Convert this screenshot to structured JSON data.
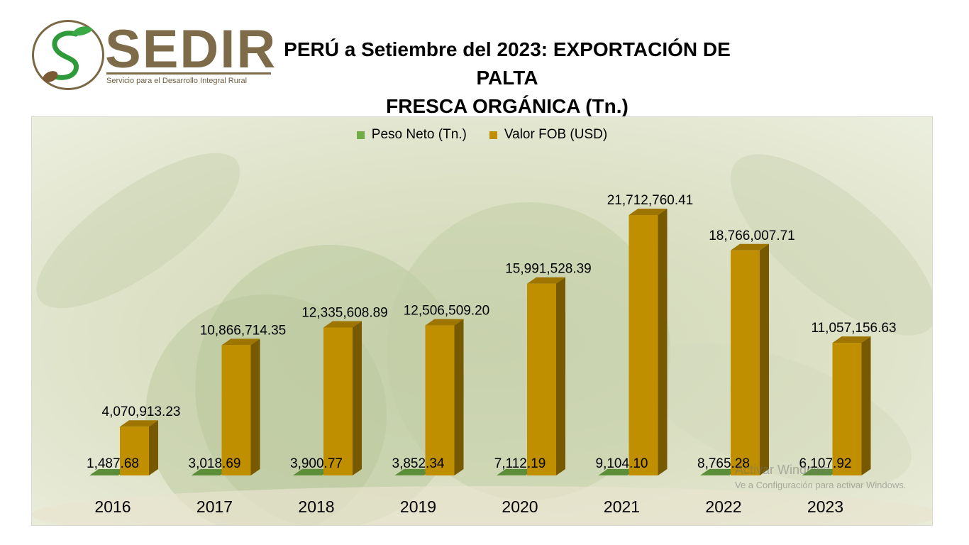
{
  "logo": {
    "name": "SEDIR",
    "subtitle": "Servicio para el Desarrollo Integral Rural"
  },
  "title_line1": "PERÚ a Setiembre del 2023: EXPORTACIÓN DE PALTA",
  "title_line2": "FRESCA ORGÁNICA (Tn.)",
  "watermark": {
    "line1": "Activar Windows",
    "line2": "Ve a Configuración para activar Windows."
  },
  "chart_data": {
    "type": "bar",
    "style": "3d-clustered-column",
    "categories": [
      "2016",
      "2017",
      "2018",
      "2019",
      "2020",
      "2021",
      "2022",
      "2023"
    ],
    "legend_position": "top",
    "gridlines": false,
    "colors": {
      "peso": "#70ad47",
      "valor": "#bf8f00"
    },
    "series": [
      {
        "name": "Peso Neto (Tn.)",
        "values": [
          1487.68,
          3018.69,
          3900.77,
          3852.34,
          7112.19,
          9104.1,
          8765.28,
          6107.92
        ],
        "labels": [
          "1,487.68",
          "3,018.69",
          "3,900.77",
          "3,852.34",
          "7,112.19",
          "9,104.10",
          "8,765.28",
          "6,107.92"
        ]
      },
      {
        "name": "Valor FOB (USD)",
        "values": [
          4070913.23,
          10866714.35,
          12335608.89,
          12506509.2,
          15991528.39,
          21712760.41,
          18766007.71,
          11057156.63
        ],
        "labels": [
          "4,070,913.23",
          "10,866,714.35",
          "12,335,608.89",
          "12,506,509.20",
          "15,991,528.39",
          "21,712,760.41",
          "18,766,007.71",
          "11,057,156.63"
        ]
      }
    ]
  }
}
